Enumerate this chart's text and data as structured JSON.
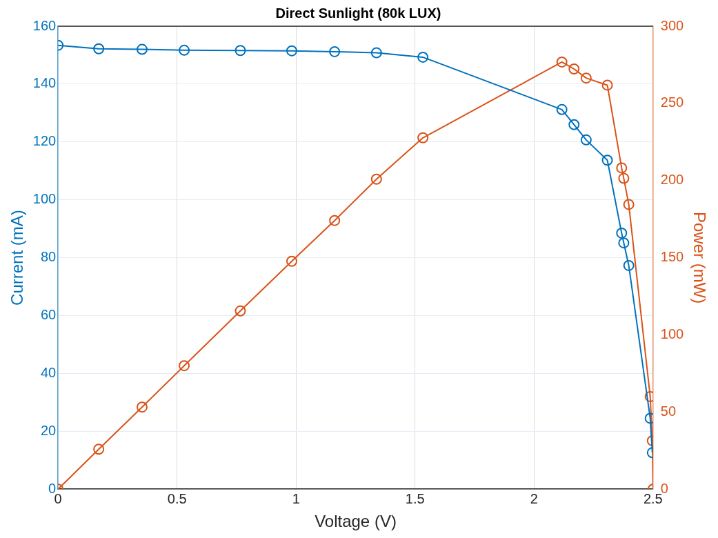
{
  "chart_data": {
    "type": "line",
    "title": "Direct Sunlight (80k LUX)",
    "xlabel": "Voltage (V)",
    "ylabel": "Current (mA)",
    "y2label": "Power (mW)",
    "xlim": [
      0,
      2.5
    ],
    "xticks": [
      0,
      0.5,
      1,
      1.5,
      2,
      2.5
    ],
    "ylim": [
      0,
      160
    ],
    "yticks": [
      0,
      20,
      40,
      60,
      80,
      100,
      120,
      140,
      160
    ],
    "y2lim": [
      0,
      300
    ],
    "y2ticks": [
      0,
      50,
      100,
      150,
      200,
      250,
      300
    ],
    "grid": true,
    "legend": false,
    "marker": "circle",
    "line_style": "solid",
    "series": [
      {
        "color": "#0072bd",
        "x": [
          0,
          0.171,
          0.353,
          0.53,
          0.766,
          0.982,
          1.162,
          1.338,
          1.533,
          2.117,
          2.168,
          2.219,
          2.308,
          2.368,
          2.377,
          2.398,
          2.488,
          2.497
        ],
        "values": [
          153.4,
          152.2,
          152,
          151.7,
          151.6,
          151.5,
          151.2,
          150.8,
          149.3,
          131.2,
          126,
          120.7,
          113.7,
          88.5,
          85.1,
          77.3,
          24.5,
          12.6
        ]
      },
      {
        "color": "#d95319",
        "axis": "y2",
        "x": [
          0,
          0.171,
          0.353,
          0.53,
          0.766,
          0.982,
          1.162,
          1.338,
          1.533,
          2.117,
          2.168,
          2.219,
          2.308,
          2.368,
          2.377,
          2.398,
          2.488,
          2.497,
          2.5
        ],
        "values": [
          0,
          25.9,
          53.2,
          80,
          115.5,
          147.7,
          174.1,
          200.9,
          227.7,
          276.8,
          272.3,
          266.4,
          261.8,
          208.2,
          201.4,
          184.5,
          60,
          31.4,
          0
        ]
      }
    ]
  }
}
